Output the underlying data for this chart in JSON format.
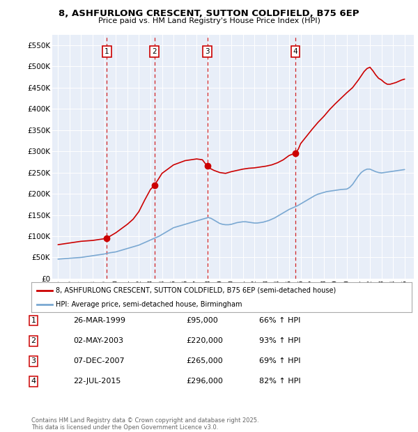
{
  "title_line1": "8, ASHFURLONG CRESCENT, SUTTON COLDFIELD, B75 6EP",
  "title_line2": "Price paid vs. HM Land Registry's House Price Index (HPI)",
  "ytick_values": [
    0,
    50000,
    100000,
    150000,
    200000,
    250000,
    300000,
    350000,
    400000,
    450000,
    500000,
    550000
  ],
  "ylim": [
    0,
    575000
  ],
  "xlim_start": 1994.5,
  "xlim_end": 2025.8,
  "background_color": "#e8eef8",
  "sale_dates_num": [
    1999.23,
    2003.34,
    2007.92,
    2015.55
  ],
  "sale_prices": [
    95000,
    220000,
    265000,
    296000
  ],
  "sale_labels": [
    "1",
    "2",
    "3",
    "4"
  ],
  "sale_date_strs": [
    "26-MAR-1999",
    "02-MAY-2003",
    "07-DEC-2007",
    "22-JUL-2015"
  ],
  "sale_pct": [
    "66% ↑ HPI",
    "93% ↑ HPI",
    "69% ↑ HPI",
    "82% ↑ HPI"
  ],
  "sale_prices_fmt": [
    "£95,000",
    "£220,000",
    "£265,000",
    "£296,000"
  ],
  "red_color": "#cc0000",
  "blue_color": "#7aa8d2",
  "legend_label_red": "8, ASHFURLONG CRESCENT, SUTTON COLDFIELD, B75 6EP (semi-detached house)",
  "legend_label_blue": "HPI: Average price, semi-detached house, Birmingham",
  "footer": "Contains HM Land Registry data © Crown copyright and database right 2025.\nThis data is licensed under the Open Government Licence v3.0.",
  "hpi_x": [
    1995.0,
    1995.25,
    1995.5,
    1995.75,
    1996.0,
    1996.25,
    1996.5,
    1996.75,
    1997.0,
    1997.25,
    1997.5,
    1997.75,
    1998.0,
    1998.25,
    1998.5,
    1998.75,
    1999.0,
    1999.25,
    1999.5,
    1999.75,
    2000.0,
    2000.25,
    2000.5,
    2000.75,
    2001.0,
    2001.25,
    2001.5,
    2001.75,
    2002.0,
    2002.25,
    2002.5,
    2002.75,
    2003.0,
    2003.25,
    2003.5,
    2003.75,
    2004.0,
    2004.25,
    2004.5,
    2004.75,
    2005.0,
    2005.25,
    2005.5,
    2005.75,
    2006.0,
    2006.25,
    2006.5,
    2006.75,
    2007.0,
    2007.25,
    2007.5,
    2007.75,
    2008.0,
    2008.25,
    2008.5,
    2008.75,
    2009.0,
    2009.25,
    2009.5,
    2009.75,
    2010.0,
    2010.25,
    2010.5,
    2010.75,
    2011.0,
    2011.25,
    2011.5,
    2011.75,
    2012.0,
    2012.25,
    2012.5,
    2012.75,
    2013.0,
    2013.25,
    2013.5,
    2013.75,
    2014.0,
    2014.25,
    2014.5,
    2014.75,
    2015.0,
    2015.25,
    2015.5,
    2015.75,
    2016.0,
    2016.25,
    2016.5,
    2016.75,
    2017.0,
    2017.25,
    2017.5,
    2017.75,
    2018.0,
    2018.25,
    2018.5,
    2018.75,
    2019.0,
    2019.25,
    2019.5,
    2019.75,
    2020.0,
    2020.25,
    2020.5,
    2020.75,
    2021.0,
    2021.25,
    2021.5,
    2021.75,
    2022.0,
    2022.25,
    2022.5,
    2022.75,
    2023.0,
    2023.25,
    2023.5,
    2023.75,
    2024.0,
    2024.25,
    2024.5,
    2024.75,
    2025.0
  ],
  "hpi_y": [
    46000,
    46500,
    47000,
    47500,
    48000,
    48500,
    49000,
    49500,
    50000,
    51000,
    52000,
    53000,
    54000,
    55000,
    56000,
    57000,
    58000,
    59500,
    61000,
    62000,
    63000,
    65000,
    67000,
    69000,
    71000,
    73000,
    75000,
    77000,
    79000,
    82000,
    85000,
    88000,
    91000,
    94000,
    97000,
    100000,
    104000,
    108000,
    112000,
    116000,
    120000,
    122000,
    124000,
    126000,
    128000,
    130000,
    132000,
    134000,
    136000,
    138000,
    140000,
    142000,
    144000,
    142000,
    138000,
    134000,
    130000,
    128000,
    127000,
    127000,
    128000,
    130000,
    132000,
    133000,
    134000,
    134000,
    133000,
    132000,
    131000,
    131000,
    132000,
    133000,
    135000,
    137000,
    140000,
    143000,
    147000,
    151000,
    155000,
    159000,
    163000,
    166000,
    169000,
    172000,
    176000,
    180000,
    184000,
    188000,
    192000,
    196000,
    199000,
    201000,
    203000,
    205000,
    206000,
    207000,
    208000,
    209000,
    210000,
    210500,
    211000,
    215000,
    222000,
    232000,
    242000,
    250000,
    255000,
    258000,
    258000,
    255000,
    252000,
    250000,
    249000,
    250000,
    251000,
    252000,
    253000,
    254000,
    255000,
    256000,
    257000
  ],
  "prop_x": [
    1995.0,
    1995.5,
    1996.0,
    1996.5,
    1997.0,
    1997.5,
    1998.0,
    1998.5,
    1999.0,
    1999.23,
    1999.5,
    2000.0,
    2000.5,
    2001.0,
    2001.5,
    2002.0,
    2002.5,
    2003.0,
    2003.34,
    2003.7,
    2004.0,
    2004.5,
    2005.0,
    2005.5,
    2006.0,
    2006.5,
    2007.0,
    2007.5,
    2007.92,
    2008.0,
    2008.5,
    2009.0,
    2009.5,
    2010.0,
    2010.5,
    2011.0,
    2011.5,
    2012.0,
    2012.5,
    2013.0,
    2013.5,
    2014.0,
    2014.5,
    2015.0,
    2015.55,
    2015.8,
    2016.0,
    2016.5,
    2017.0,
    2017.5,
    2018.0,
    2018.5,
    2019.0,
    2019.5,
    2020.0,
    2020.5,
    2021.0,
    2021.25,
    2021.5,
    2021.75,
    2022.0,
    2022.25,
    2022.5,
    2022.75,
    2023.0,
    2023.25,
    2023.5,
    2023.75,
    2024.0,
    2024.25,
    2024.5,
    2024.75,
    2025.0
  ],
  "prop_y": [
    80000,
    82000,
    84000,
    86000,
    88000,
    89000,
    90000,
    92000,
    94000,
    95000,
    100000,
    108000,
    118000,
    128000,
    140000,
    158000,
    185000,
    210000,
    220000,
    235000,
    248000,
    258000,
    268000,
    273000,
    278000,
    280000,
    282000,
    280000,
    265000,
    262000,
    255000,
    250000,
    248000,
    252000,
    255000,
    258000,
    260000,
    261000,
    263000,
    265000,
    268000,
    273000,
    280000,
    290000,
    296000,
    305000,
    318000,
    335000,
    352000,
    368000,
    382000,
    398000,
    412000,
    425000,
    438000,
    450000,
    468000,
    478000,
    488000,
    495000,
    498000,
    490000,
    480000,
    472000,
    468000,
    462000,
    458000,
    458000,
    460000,
    462000,
    465000,
    468000,
    470000
  ]
}
